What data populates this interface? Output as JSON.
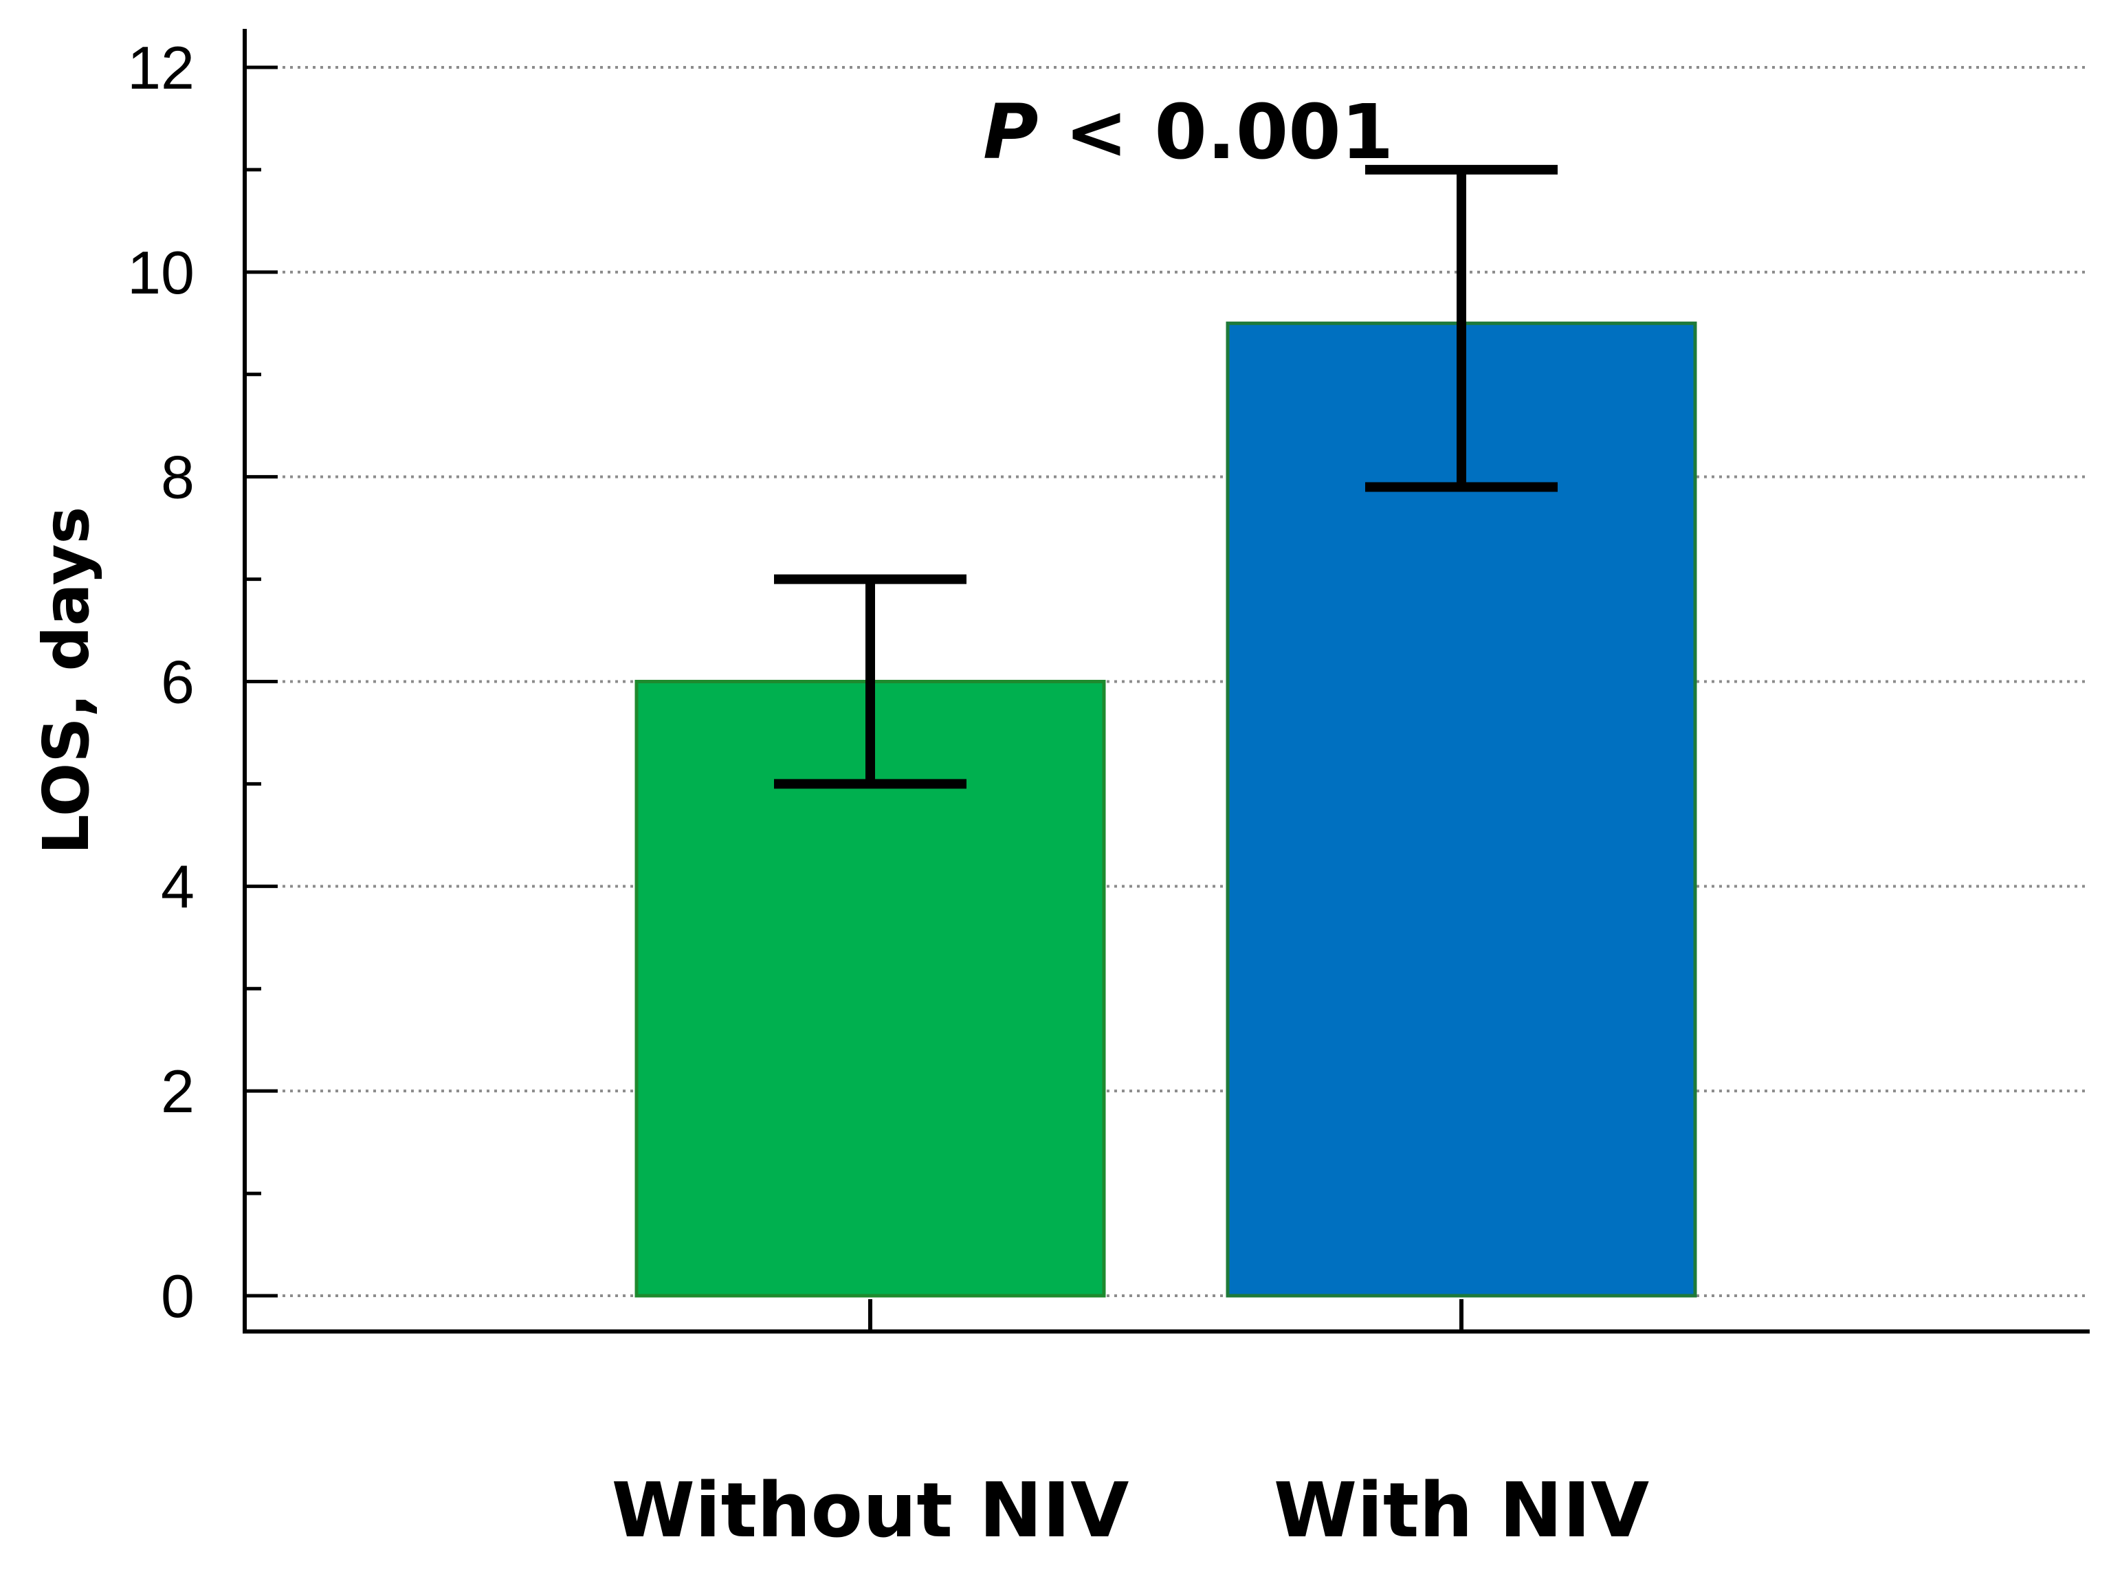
{
  "chart_data": {
    "type": "bar",
    "title": "",
    "xlabel": "",
    "ylabel": "LOS, days",
    "ylim": [
      0,
      12
    ],
    "yticks": [
      "0",
      "2",
      "4",
      "6",
      "8",
      "10",
      "12"
    ],
    "grid": "horizontal dotted",
    "categories": [
      "Without NIV",
      "With NIV"
    ],
    "values": [
      6,
      9.5
    ],
    "error_low": [
      5,
      7.9
    ],
    "error_high": [
      7,
      11
    ],
    "colors": [
      "#00b04f",
      "#0070c0"
    ],
    "edge_colors": [
      "#1e8a2e",
      "#1e7a3a"
    ],
    "annotation": {
      "prefix": "P",
      "text": " < 0.001"
    }
  }
}
